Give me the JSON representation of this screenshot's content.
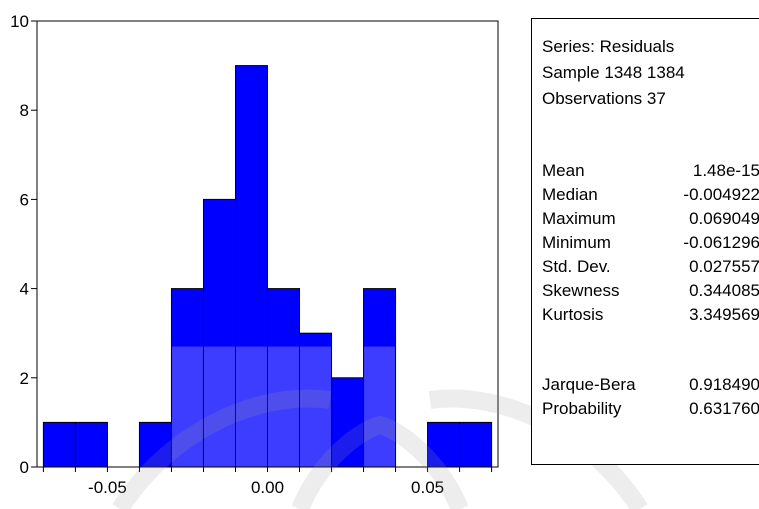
{
  "chart_data": {
    "type": "bar",
    "bin_edges": [
      -0.07,
      -0.06,
      -0.05,
      -0.04,
      -0.03,
      -0.02,
      -0.01,
      0.0,
      0.01,
      0.02,
      0.03,
      0.04,
      0.05,
      0.06,
      0.07
    ],
    "values": [
      1,
      1,
      0,
      1,
      4,
      6,
      9,
      4,
      3,
      2,
      4,
      0,
      1,
      1
    ],
    "xlim": [
      -0.072,
      0.072
    ],
    "ylim": [
      0,
      10
    ],
    "yticks": [
      0,
      2,
      4,
      6,
      8,
      10
    ],
    "xticks": [
      -0.05,
      0.0,
      0.05
    ],
    "ytick_labels": [
      "0",
      "2",
      "4",
      "6",
      "8",
      "10"
    ],
    "xtick_labels": [
      "-0.05",
      "0.00",
      "0.05"
    ],
    "bar_color": "#0000ff",
    "bar_color_faded": "#3d3dff",
    "faded_below": 2.7,
    "grid": false
  },
  "stats": {
    "header": [
      "Series: Residuals",
      "Sample 1348 1384",
      "Observations 37"
    ],
    "rows": [
      {
        "label": "Mean",
        "value": "1.48e-15"
      },
      {
        "label": "Median",
        "value": "-0.004922"
      },
      {
        "label": "Maximum",
        "value": "0.069049"
      },
      {
        "label": "Minimum",
        "value": "-0.061296"
      },
      {
        "label": "Std. Dev.",
        "value": "0.027557"
      },
      {
        "label": "Skewness",
        "value": "0.344085"
      },
      {
        "label": "Kurtosis",
        "value": "3.349569"
      }
    ],
    "test_rows": [
      {
        "label": "Jarque-Bera",
        "value": "0.918490"
      },
      {
        "label": "Probability",
        "value": "0.631760"
      }
    ]
  }
}
